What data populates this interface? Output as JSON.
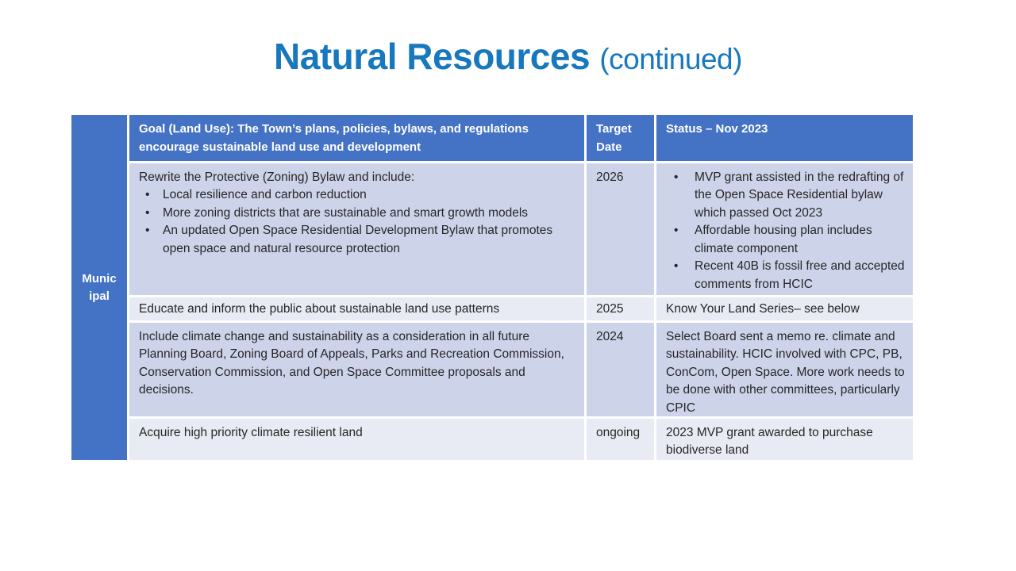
{
  "title": {
    "main": "Natural Resources",
    "suffix": "(continued)"
  },
  "colors": {
    "accent_blue": "#4472c4",
    "band_dark": "#cdd4ea",
    "band_light": "#e9ebf4",
    "title_blue": "#1878be",
    "body_text": "#262626",
    "header_text": "#ffffff"
  },
  "table": {
    "group_label_lines": [
      "Munic",
      "ipal"
    ],
    "header": {
      "goal": "Goal (Land Use): The Town’s plans, policies, bylaws, and regulations encourage sustainable land use and development",
      "target": "Target Date",
      "status": "Status – Nov 2023"
    },
    "rows": [
      {
        "goal_intro": "Rewrite the Protective (Zoning) Bylaw and include:",
        "goal_bullets": [
          "Local resilience and carbon reduction",
          "More zoning districts that are sustainable and smart growth models",
          "An updated Open Space Residential Development Bylaw that promotes open space and natural resource protection"
        ],
        "target": "2026",
        "status_bullets": [
          "MVP grant assisted in the redrafting of the Open Space Residential bylaw which passed Oct 2023",
          "Affordable housing plan includes climate component",
          "Recent 40B is fossil free and accepted comments from HCIC"
        ]
      },
      {
        "goal": "Educate and inform the public about sustainable land use patterns",
        "target": "2025",
        "status": "Know Your Land Series– see below"
      },
      {
        "goal": "Include climate change and sustainability as a consideration in all future Planning Board, Zoning Board of Appeals, Parks and Recreation Commission, Conservation Commission, and Open Space Committee proposals and decisions.",
        "target": "2024",
        "status": "Select Board sent a memo re. climate and sustainability.  HCIC involved with CPC, PB, ConCom, Open Space.  More work needs to be done with other committees, particularly CPIC"
      },
      {
        "goal": "Acquire high priority climate resilient land",
        "target": "ongoing",
        "status": "2023 MVP grant awarded to purchase biodiverse land"
      }
    ],
    "bullet_glyph": "•"
  }
}
